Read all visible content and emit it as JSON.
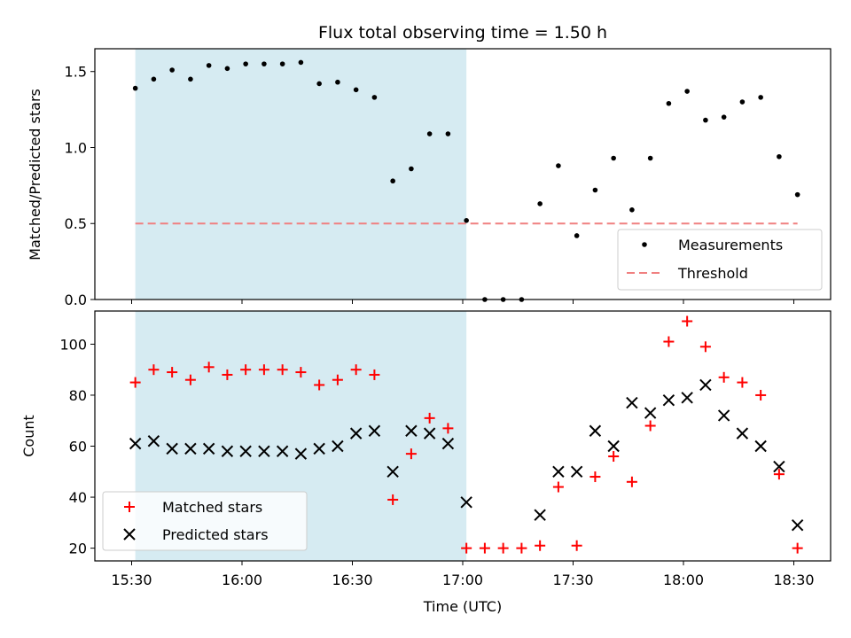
{
  "chart_data": {
    "type": "scatter",
    "title": "Flux total observing time = 1.50 h",
    "xlabel": "Time (UTC)",
    "x_ticks": [
      "15:30",
      "16:00",
      "16:30",
      "17:00",
      "17:30",
      "18:00",
      "18:30"
    ],
    "shaded_region": {
      "x_start": "15:31",
      "x_end": "17:01",
      "color": "#add8e6"
    },
    "panels": [
      {
        "ylabel": "Matched/Predicted stars",
        "ylim": [
          0,
          1.65
        ],
        "y_ticks": [
          0.0,
          0.5,
          1.0,
          1.5
        ],
        "y_tick_labels": [
          "0.0",
          "0.5",
          "1.0",
          "1.5"
        ],
        "legend_position": "lower-right",
        "series": [
          {
            "name": "Measurements",
            "marker": "dot",
            "color": "#000000",
            "points": [
              {
                "x": "15:31",
                "y": 1.39
              },
              {
                "x": "15:36",
                "y": 1.45
              },
              {
                "x": "15:41",
                "y": 1.51
              },
              {
                "x": "15:46",
                "y": 1.45
              },
              {
                "x": "15:51",
                "y": 1.54
              },
              {
                "x": "15:56",
                "y": 1.52
              },
              {
                "x": "16:01",
                "y": 1.55
              },
              {
                "x": "16:06",
                "y": 1.55
              },
              {
                "x": "16:11",
                "y": 1.55
              },
              {
                "x": "16:16",
                "y": 1.56
              },
              {
                "x": "16:21",
                "y": 1.42
              },
              {
                "x": "16:26",
                "y": 1.43
              },
              {
                "x": "16:31",
                "y": 1.38
              },
              {
                "x": "16:36",
                "y": 1.33
              },
              {
                "x": "16:41",
                "y": 0.78
              },
              {
                "x": "16:46",
                "y": 0.86
              },
              {
                "x": "16:51",
                "y": 1.09
              },
              {
                "x": "16:56",
                "y": 1.09
              },
              {
                "x": "17:01",
                "y": 0.52
              },
              {
                "x": "17:06",
                "y": 0.0
              },
              {
                "x": "17:11",
                "y": 0.0
              },
              {
                "x": "17:16",
                "y": 0.0
              },
              {
                "x": "17:21",
                "y": 0.63
              },
              {
                "x": "17:26",
                "y": 0.88
              },
              {
                "x": "17:31",
                "y": 0.42
              },
              {
                "x": "17:36",
                "y": 0.72
              },
              {
                "x": "17:41",
                "y": 0.93
              },
              {
                "x": "17:46",
                "y": 0.59
              },
              {
                "x": "17:51",
                "y": 0.93
              },
              {
                "x": "17:56",
                "y": 1.29
              },
              {
                "x": "18:01",
                "y": 1.37
              },
              {
                "x": "18:06",
                "y": 1.18
              },
              {
                "x": "18:11",
                "y": 1.2
              },
              {
                "x": "18:16",
                "y": 1.3
              },
              {
                "x": "18:21",
                "y": 1.33
              },
              {
                "x": "18:26",
                "y": 0.94
              },
              {
                "x": "18:31",
                "y": 0.69
              }
            ]
          },
          {
            "name": "Threshold",
            "marker": "dashed-line",
            "color": "#f08080",
            "points": [
              {
                "x": "15:31",
                "y": 0.5
              },
              {
                "x": "18:31",
                "y": 0.5
              }
            ]
          }
        ]
      },
      {
        "ylabel": "Count",
        "ylim": [
          15,
          113
        ],
        "y_ticks": [
          20,
          40,
          60,
          80,
          100
        ],
        "y_tick_labels": [
          "20",
          "40",
          "60",
          "80",
          "100"
        ],
        "legend_position": "lower-left",
        "series": [
          {
            "name": "Matched stars",
            "marker": "plus",
            "color": "#ff0000",
            "points": [
              {
                "x": "15:31",
                "y": 85
              },
              {
                "x": "15:36",
                "y": 90
              },
              {
                "x": "15:41",
                "y": 89
              },
              {
                "x": "15:46",
                "y": 86
              },
              {
                "x": "15:51",
                "y": 91
              },
              {
                "x": "15:56",
                "y": 88
              },
              {
                "x": "16:01",
                "y": 90
              },
              {
                "x": "16:06",
                "y": 90
              },
              {
                "x": "16:11",
                "y": 90
              },
              {
                "x": "16:16",
                "y": 89
              },
              {
                "x": "16:21",
                "y": 84
              },
              {
                "x": "16:26",
                "y": 86
              },
              {
                "x": "16:31",
                "y": 90
              },
              {
                "x": "16:36",
                "y": 88
              },
              {
                "x": "16:41",
                "y": 39
              },
              {
                "x": "16:46",
                "y": 57
              },
              {
                "x": "16:51",
                "y": 71
              },
              {
                "x": "16:56",
                "y": 67
              },
              {
                "x": "17:01",
                "y": 20
              },
              {
                "x": "17:06",
                "y": 20
              },
              {
                "x": "17:11",
                "y": 20
              },
              {
                "x": "17:16",
                "y": 20
              },
              {
                "x": "17:21",
                "y": 21
              },
              {
                "x": "17:26",
                "y": 44
              },
              {
                "x": "17:31",
                "y": 21
              },
              {
                "x": "17:36",
                "y": 48
              },
              {
                "x": "17:41",
                "y": 56
              },
              {
                "x": "17:46",
                "y": 46
              },
              {
                "x": "17:51",
                "y": 68
              },
              {
                "x": "17:56",
                "y": 101
              },
              {
                "x": "18:01",
                "y": 109
              },
              {
                "x": "18:06",
                "y": 99
              },
              {
                "x": "18:11",
                "y": 87
              },
              {
                "x": "18:16",
                "y": 85
              },
              {
                "x": "18:21",
                "y": 80
              },
              {
                "x": "18:26",
                "y": 49
              },
              {
                "x": "18:31",
                "y": 20
              }
            ]
          },
          {
            "name": "Predicted stars",
            "marker": "x",
            "color": "#000000",
            "points": [
              {
                "x": "15:31",
                "y": 61
              },
              {
                "x": "15:36",
                "y": 62
              },
              {
                "x": "15:41",
                "y": 59
              },
              {
                "x": "15:46",
                "y": 59
              },
              {
                "x": "15:51",
                "y": 59
              },
              {
                "x": "15:56",
                "y": 58
              },
              {
                "x": "16:01",
                "y": 58
              },
              {
                "x": "16:06",
                "y": 58
              },
              {
                "x": "16:11",
                "y": 58
              },
              {
                "x": "16:16",
                "y": 57
              },
              {
                "x": "16:21",
                "y": 59
              },
              {
                "x": "16:26",
                "y": 60
              },
              {
                "x": "16:31",
                "y": 65
              },
              {
                "x": "16:36",
                "y": 66
              },
              {
                "x": "16:41",
                "y": 50
              },
              {
                "x": "16:46",
                "y": 66
              },
              {
                "x": "16:51",
                "y": 65
              },
              {
                "x": "16:56",
                "y": 61
              },
              {
                "x": "17:01",
                "y": 38
              },
              {
                "x": "17:21",
                "y": 33
              },
              {
                "x": "17:26",
                "y": 50
              },
              {
                "x": "17:31",
                "y": 50
              },
              {
                "x": "17:36",
                "y": 66
              },
              {
                "x": "17:41",
                "y": 60
              },
              {
                "x": "17:46",
                "y": 77
              },
              {
                "x": "17:51",
                "y": 73
              },
              {
                "x": "17:56",
                "y": 78
              },
              {
                "x": "18:01",
                "y": 79
              },
              {
                "x": "18:06",
                "y": 84
              },
              {
                "x": "18:11",
                "y": 72
              },
              {
                "x": "18:16",
                "y": 65
              },
              {
                "x": "18:21",
                "y": 60
              },
              {
                "x": "18:26",
                "y": 52
              },
              {
                "x": "18:31",
                "y": 29
              }
            ]
          }
        ]
      }
    ]
  }
}
